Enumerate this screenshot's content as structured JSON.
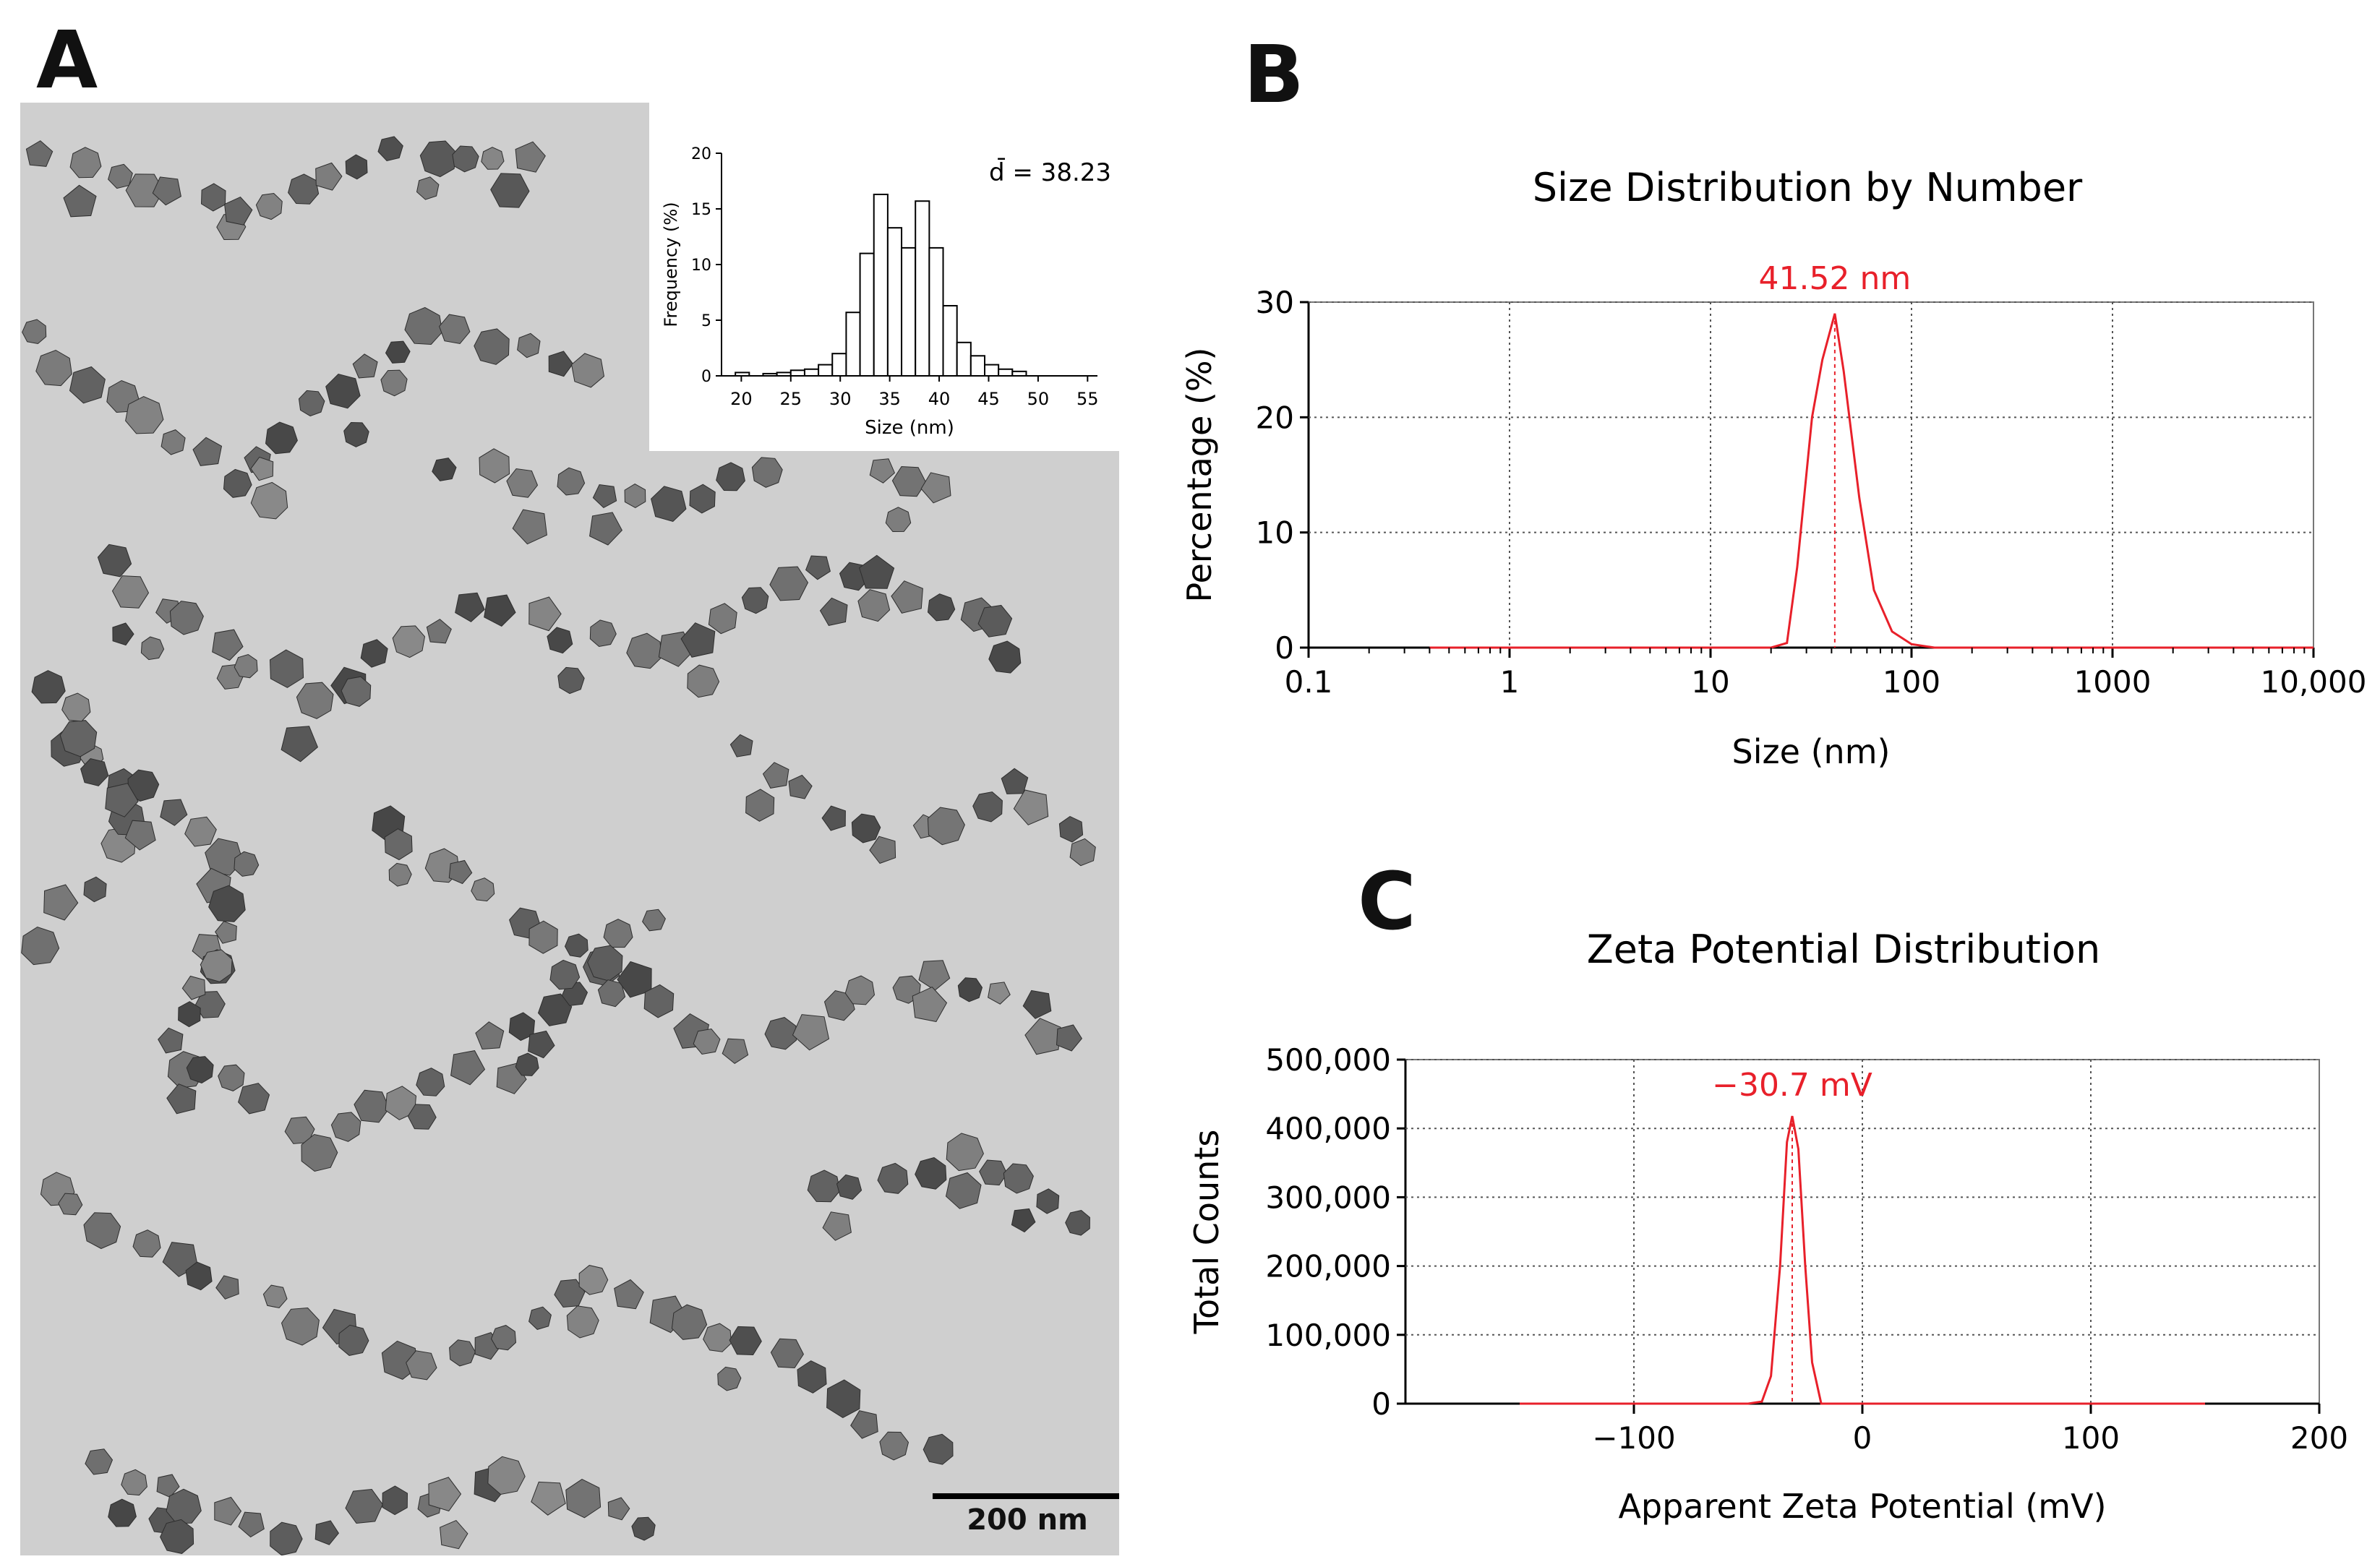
{
  "panels": {
    "a": "A",
    "b": "B",
    "c": "C"
  },
  "tem": {
    "scale_bar_label": "200 nm"
  },
  "colors": {
    "curve": "#e8202a",
    "grid": "#555555",
    "particle_dark": "#3a3a3a",
    "background": "#cfcfcf"
  },
  "chart_data": [
    {
      "type": "bar",
      "id": "histogram",
      "title": "",
      "annotation": "d̄ = 38.23",
      "xlabel": "Size (nm)",
      "ylabel": "Frequency (%)",
      "xlim": [
        18,
        56
      ],
      "ylim": [
        0,
        20
      ],
      "xticks": [
        20,
        25,
        30,
        35,
        40,
        45,
        50,
        55
      ],
      "yticks": [
        0,
        5,
        10,
        15,
        20
      ],
      "bin_width": 1.4,
      "bin_starts": [
        18,
        19.4,
        20.8,
        22.2,
        23.6,
        25,
        26.4,
        27.8,
        29.2,
        30.6,
        32,
        33.4,
        34.8,
        36.2,
        37.6,
        39,
        40.4,
        41.8,
        43.2,
        44.6,
        46,
        47.4,
        48.8,
        50.2,
        51.6,
        53,
        54.4
      ],
      "values": [
        0,
        0.3,
        0,
        0.2,
        0.3,
        0.5,
        0.6,
        1,
        2,
        5.7,
        11,
        16.3,
        13.3,
        11.5,
        15.7,
        11.5,
        6.3,
        3,
        1.8,
        1,
        0.6,
        0.4,
        0,
        0,
        0,
        0,
        0
      ]
    },
    {
      "type": "line",
      "id": "size-distribution",
      "title": "Size Distribution by Number",
      "xlabel": "Size (nm)",
      "ylabel": "Percentage (%)",
      "xscale": "log",
      "xlim": [
        0.1,
        10000
      ],
      "ylim": [
        0,
        30
      ],
      "xtick_labels": [
        "0.1",
        "1",
        "10",
        "100",
        "1000",
        "10,000"
      ],
      "xtick_values": [
        0.1,
        1,
        10,
        100,
        1000,
        10000
      ],
      "ytick_labels": [
        "0",
        "10",
        "20",
        "30"
      ],
      "ytick_values": [
        0,
        10,
        20,
        30
      ],
      "peak_label": "41.52 nm",
      "peak_x": 41.52,
      "series": [
        {
          "name": "number",
          "x": [
            0.4,
            10,
            20,
            24,
            27,
            32,
            36,
            41.52,
            46,
            55,
            65,
            80,
            100,
            130,
            10000
          ],
          "y": [
            0,
            0,
            0,
            0.4,
            7,
            20,
            25,
            29,
            24,
            13,
            5,
            1.4,
            0.3,
            0,
            0
          ]
        }
      ]
    },
    {
      "type": "line",
      "id": "zeta-potential",
      "title": "Zeta Potential Distribution",
      "xlabel": "Apparent Zeta Potential (mV)",
      "ylabel": "Total Counts",
      "xlim": [
        -200,
        200
      ],
      "ylim": [
        0,
        500000
      ],
      "xtick_labels": [
        "−100",
        "0",
        "100",
        "200"
      ],
      "xtick_values": [
        -100,
        0,
        100,
        200
      ],
      "ytick_labels": [
        "0",
        "100,000",
        "200,000",
        "300,000",
        "400,000",
        "500,000"
      ],
      "ytick_values": [
        0,
        100000,
        200000,
        300000,
        400000,
        500000
      ],
      "peak_label": "−30.7 mV",
      "peak_x": -30.7,
      "series": [
        {
          "name": "counts",
          "x": [
            -150,
            -50,
            -44,
            -40,
            -36,
            -33,
            -30.7,
            -28,
            -25,
            -22,
            -18,
            150
          ],
          "y": [
            0,
            0,
            3000,
            40000,
            200000,
            380000,
            418000,
            370000,
            200000,
            60000,
            0,
            0
          ]
        }
      ]
    }
  ]
}
